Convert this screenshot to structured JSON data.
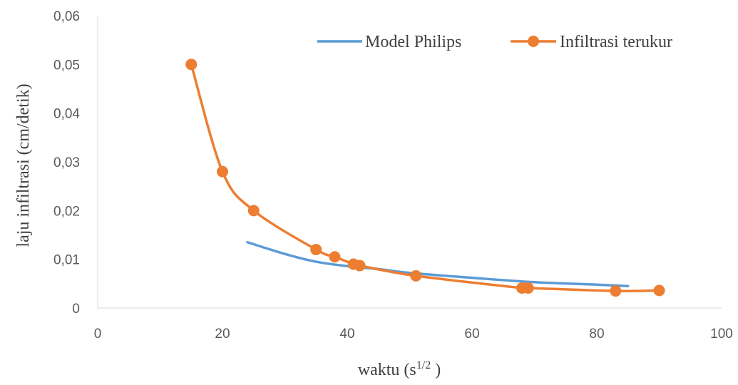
{
  "chart_data": {
    "type": "scatter",
    "title": "",
    "xlabel": "waktu (s",
    "xlabel_sup": "1/2",
    "xlabel_end": " )",
    "ylabel": "laju infiltrasi (cm/detik)",
    "xlim": [
      0,
      100
    ],
    "ylim": [
      0,
      0.06
    ],
    "x_ticks": [
      0,
      20,
      40,
      60,
      80,
      100
    ],
    "x_tick_labels": [
      "0",
      "20",
      "40",
      "60",
      "80",
      "100"
    ],
    "y_ticks": [
      0,
      0.01,
      0.02,
      0.03,
      0.04,
      0.05,
      0.06
    ],
    "y_tick_labels": [
      "0",
      "0,01",
      "0,02",
      "0,03",
      "0,04",
      "0,05",
      "0,06"
    ],
    "grid": false,
    "legend_position": "top-right",
    "series": [
      {
        "name": "Model Philips",
        "color": "#5B9BD5",
        "style": "line",
        "x": [
          24,
          30,
          35,
          40,
          45,
          50,
          60,
          70,
          80,
          85
        ],
        "y": [
          0.0135,
          0.0111,
          0.0095,
          0.0086,
          0.008,
          0.0072,
          0.0062,
          0.0053,
          0.0048,
          0.0045
        ]
      },
      {
        "name": "Infiltrasi terukur",
        "color": "#ED7D31",
        "style": "line-marker",
        "x": [
          15,
          20,
          25,
          35,
          38,
          41,
          42,
          51,
          68,
          69,
          83,
          90
        ],
        "y": [
          0.05,
          0.028,
          0.02,
          0.012,
          0.0105,
          0.009,
          0.0087,
          0.0066,
          0.0041,
          0.0041,
          0.0035,
          0.0036
        ]
      }
    ]
  }
}
